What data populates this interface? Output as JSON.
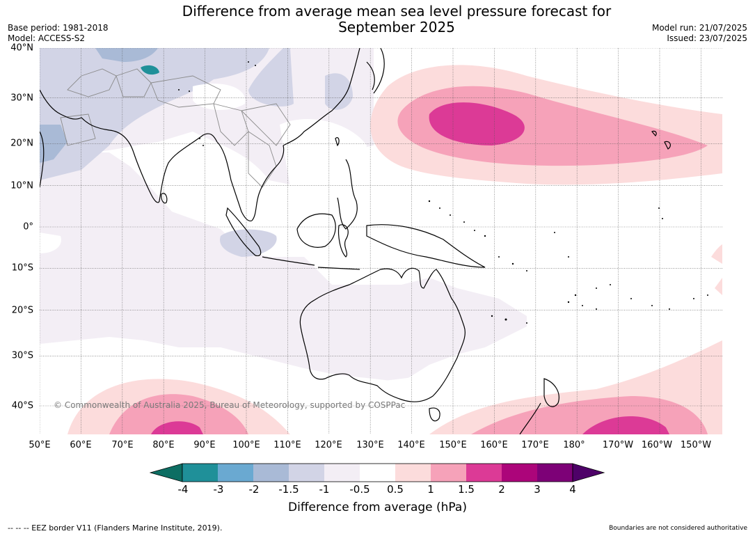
{
  "title_line1": "Difference from average mean sea level pressure forecast for",
  "title_line2": "September 2025",
  "base_period": "Base period: 1981-2018",
  "model": "Model: ACCESS-S2",
  "model_run": "Model run: 21/07/2025",
  "issued": "Issued: 23/07/2025",
  "copyright": "© Commonwealth of Australia 2025, Bureau of Meteorology, supported by COSPPac",
  "lat_labels": [
    "40°N",
    "30°N",
    "20°N",
    "10°N",
    "0°",
    "10°S",
    "20°S",
    "30°S",
    "40°S"
  ],
  "lon_labels": [
    "50°E",
    "60°E",
    "70°E",
    "80°E",
    "90°E",
    "100°E",
    "110°E",
    "120°E",
    "130°E",
    "140°E",
    "150°E",
    "160°E",
    "170°E",
    "180°",
    "170°W",
    "160°W",
    "150°W"
  ],
  "colorbar": {
    "ticks": [
      "-4",
      "-3",
      "-2",
      "-1.5",
      "-1",
      "-0.5",
      "0.5",
      "1",
      "1.5",
      "2",
      "3",
      "4"
    ],
    "colors": [
      "#0d6e63",
      "#1f9099",
      "#6aa9d1",
      "#a9bad6",
      "#d2d4e6",
      "#f3eef5",
      "#ffffff",
      "#fcdcdc",
      "#f6a2b9",
      "#dc3a96",
      "#ac057a",
      "#7d0177",
      "#4e0168"
    ],
    "label": "Difference from average (hPa)"
  },
  "footer_left": "--  --  -- EEZ border V11 (Flanders Marine Institute, 2019).",
  "footer_right": "Boundaries are not considered authoritative"
}
